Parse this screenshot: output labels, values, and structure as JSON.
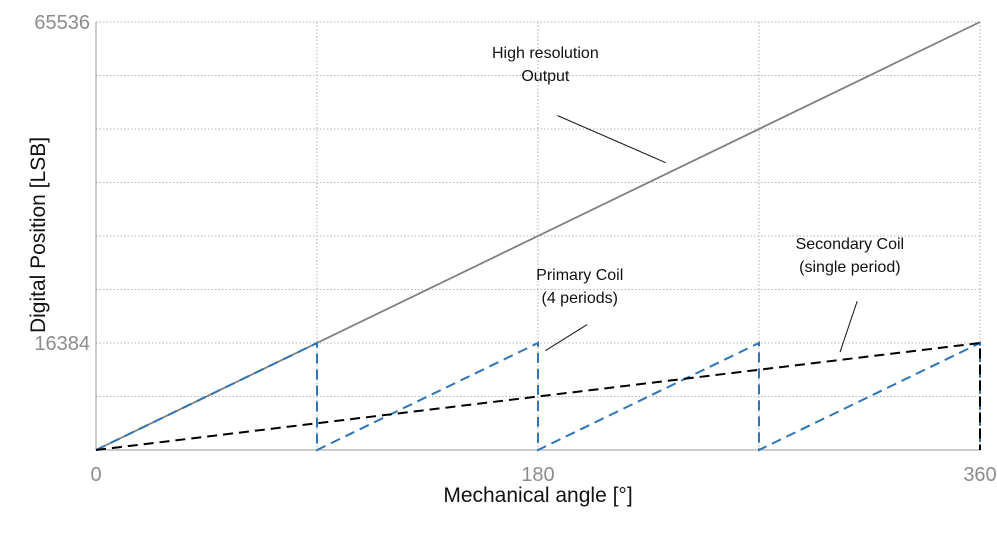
{
  "chart_data": {
    "type": "line",
    "title": "",
    "xlabel": "Mechanical angle [°]",
    "ylabel": "Digital Position [LSB]",
    "xlim": [
      0,
      360
    ],
    "ylim": [
      0,
      65536
    ],
    "x_ticks": [
      {
        "value": 0,
        "label": "0"
      },
      {
        "value": 180,
        "label": "180"
      },
      {
        "value": 360,
        "label": "360"
      }
    ],
    "y_ticks": [
      {
        "value": 16384,
        "label": "16384"
      },
      {
        "value": 65536,
        "label": "65536"
      }
    ],
    "x_gridlines": [
      90,
      180,
      270,
      360
    ],
    "y_gridlines": [
      8192,
      16384,
      24576,
      32768,
      40960,
      49152,
      57344,
      65536
    ],
    "grid": true,
    "legend": "none",
    "series": [
      {
        "key": "high-resolution",
        "color": "#808080",
        "dash": "solid",
        "points": [
          [
            0,
            0
          ],
          [
            360,
            65536
          ]
        ]
      },
      {
        "key": "primary-coil",
        "color": "#2e75b6",
        "dash": "dashed",
        "points": [
          [
            0,
            0
          ],
          [
            90,
            16384
          ],
          [
            90,
            0
          ],
          [
            180,
            16384
          ],
          [
            180,
            0
          ],
          [
            270,
            16384
          ],
          [
            270,
            0
          ],
          [
            360,
            16384
          ],
          [
            360,
            0
          ]
        ]
      },
      {
        "key": "secondary-coil",
        "color": "#000000",
        "dash": "dashed",
        "points": [
          [
            0,
            0
          ],
          [
            360,
            16384
          ],
          [
            360,
            0
          ]
        ]
      }
    ],
    "annotations": [
      {
        "key": "high-resolution",
        "lines": [
          "High resolution",
          "Output"
        ],
        "text_at": [
          183,
          60000
        ],
        "leader_from": [
          188,
          51200
        ],
        "leader_to": [
          232,
          44000
        ]
      },
      {
        "key": "primary-coil",
        "lines": [
          "Primary Coil",
          "(4 periods)"
        ],
        "text_at": [
          197,
          26000
        ],
        "leader_from": [
          200,
          19200
        ],
        "leader_to": [
          183,
          15200
        ]
      },
      {
        "key": "secondary-coil",
        "lines": [
          "Secondary Coil",
          "(single period)"
        ],
        "text_at": [
          307,
          30800
        ],
        "leader_from": [
          310,
          22800
        ],
        "leader_to": [
          303,
          15000
        ]
      }
    ]
  }
}
